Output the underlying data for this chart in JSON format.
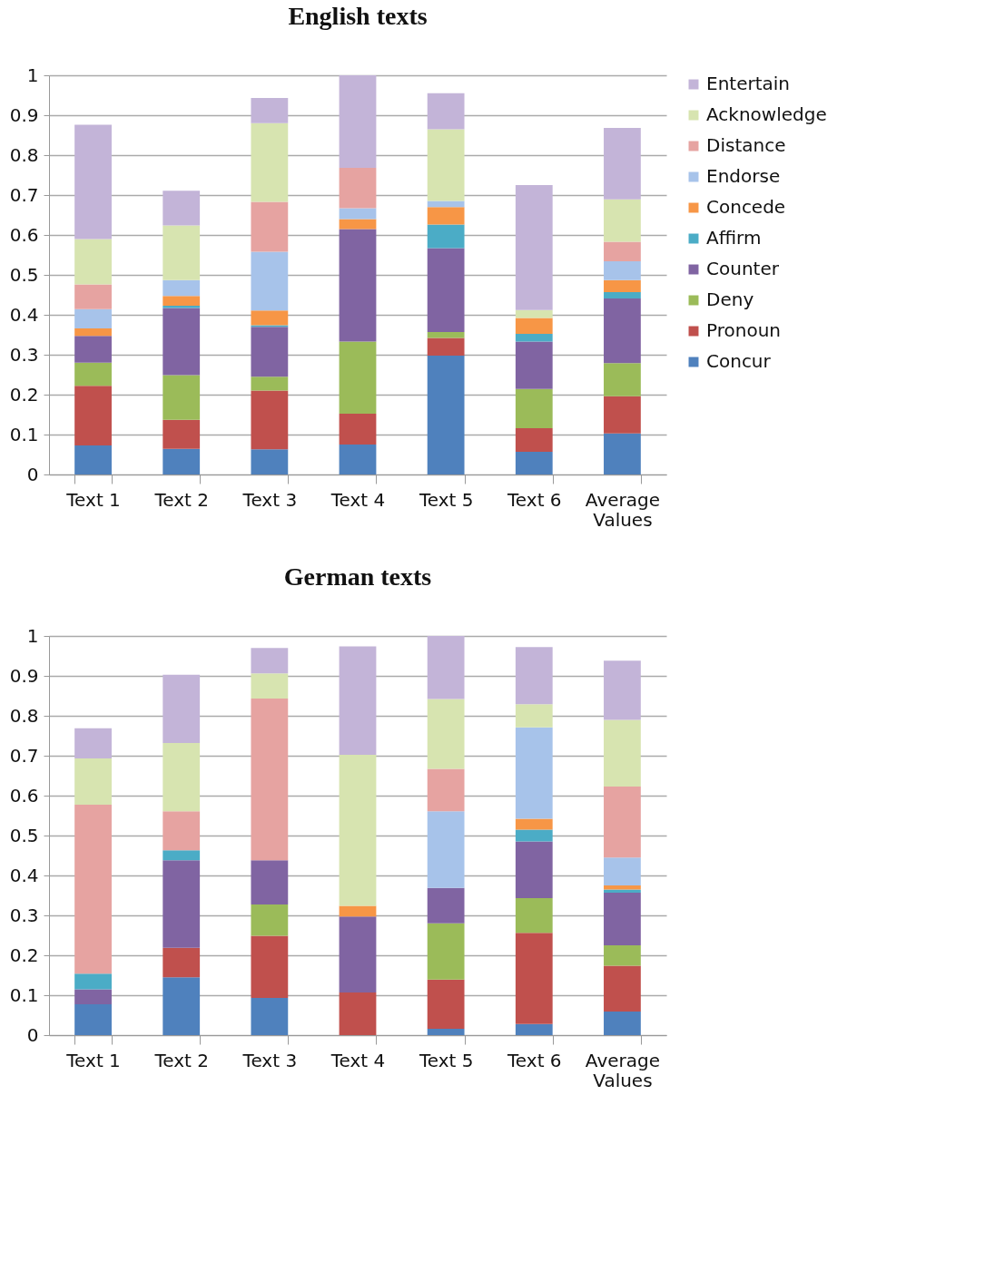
{
  "chart_data": [
    {
      "type": "bar",
      "title": "English texts",
      "stacked": true,
      "categories": [
        "Text 1",
        "Text 2",
        "Text 3",
        "Text 4",
        "Text 5",
        "Text 6",
        "Average Values"
      ],
      "ylim": [
        0,
        1
      ],
      "yticks": [
        0,
        0.1,
        0.2,
        0.3,
        0.4,
        0.5,
        0.6,
        0.7,
        0.8,
        0.9,
        1
      ],
      "grid": "y",
      "legend": "right",
      "series": [
        {
          "name": "Concur",
          "color": "#4f81bd",
          "values": [
            0.073,
            0.064,
            0.063,
            0.075,
            0.298,
            0.057,
            0.103
          ]
        },
        {
          "name": "Pronoun",
          "color": "#c0504d",
          "values": [
            0.149,
            0.073,
            0.147,
            0.077,
            0.044,
            0.059,
            0.093
          ]
        },
        {
          "name": "Deny",
          "color": "#9bbb59",
          "values": [
            0.058,
            0.112,
            0.035,
            0.181,
            0.015,
            0.098,
            0.083
          ]
        },
        {
          "name": "Counter",
          "color": "#8064a2",
          "values": [
            0.067,
            0.168,
            0.125,
            0.282,
            0.21,
            0.119,
            0.162
          ]
        },
        {
          "name": "Affirm",
          "color": "#4bacc6",
          "values": [
            0,
            0.006,
            0.004,
            0,
            0.059,
            0.019,
            0.016
          ]
        },
        {
          "name": "Concede",
          "color": "#f79646",
          "values": [
            0.019,
            0.024,
            0.037,
            0.025,
            0.044,
            0.04,
            0.03
          ]
        },
        {
          "name": "Endorse",
          "color": "#a7c3ea",
          "values": [
            0.048,
            0.04,
            0.147,
            0.027,
            0.015,
            0,
            0.047
          ]
        },
        {
          "name": "Distance",
          "color": "#e6a3a1",
          "values": [
            0.062,
            0,
            0.125,
            0.101,
            0,
            0,
            0.049
          ]
        },
        {
          "name": "Acknowledge",
          "color": "#d7e4b0",
          "values": [
            0.114,
            0.137,
            0.197,
            0,
            0.18,
            0.02,
            0.106
          ]
        },
        {
          "name": "Entertain",
          "color": "#c3b4d8",
          "values": [
            0.286,
            0.087,
            0.063,
            0.232,
            0.09,
            0.313,
            0.179
          ]
        }
      ]
    },
    {
      "type": "bar",
      "title": "German texts",
      "stacked": true,
      "categories": [
        "Text 1",
        "Text 2",
        "Text 3",
        "Text 4",
        "Text 5",
        "Text 6",
        "Average Values"
      ],
      "ylim": [
        0,
        1
      ],
      "yticks": [
        0,
        0.1,
        0.2,
        0.3,
        0.4,
        0.5,
        0.6,
        0.7,
        0.8,
        0.9,
        1
      ],
      "grid": "y",
      "legend": "right",
      "series": [
        {
          "name": "Concur",
          "color": "#4f81bd",
          "values": [
            0.077,
            0.145,
            0.093,
            0,
            0.016,
            0.028,
            0.059
          ]
        },
        {
          "name": "Pronoun",
          "color": "#c0504d",
          "values": [
            0,
            0.074,
            0.156,
            0.107,
            0.123,
            0.228,
            0.115
          ]
        },
        {
          "name": "Deny",
          "color": "#9bbb59",
          "values": [
            0,
            0,
            0.078,
            0,
            0.141,
            0.087,
            0.051
          ]
        },
        {
          "name": "Counter",
          "color": "#8064a2",
          "values": [
            0.038,
            0.219,
            0.111,
            0.19,
            0.089,
            0.142,
            0.132
          ]
        },
        {
          "name": "Affirm",
          "color": "#4bacc6",
          "values": [
            0.039,
            0.025,
            0,
            0,
            0,
            0.03,
            0.008
          ]
        },
        {
          "name": "Concede",
          "color": "#f79646",
          "values": [
            0,
            0,
            0,
            0.027,
            0,
            0.027,
            0.01
          ]
        },
        {
          "name": "Endorse",
          "color": "#a7c3ea",
          "values": [
            0,
            0,
            0,
            0,
            0.192,
            0.229,
            0.07
          ]
        },
        {
          "name": "Distance",
          "color": "#e6a3a1",
          "values": [
            0.423,
            0.098,
            0.405,
            0,
            0.106,
            0,
            0.178
          ]
        },
        {
          "name": "Acknowledge",
          "color": "#d7e4b0",
          "values": [
            0.116,
            0.171,
            0.063,
            0.378,
            0.175,
            0.058,
            0.167
          ]
        },
        {
          "name": "Entertain",
          "color": "#c3b4d8",
          "values": [
            0.076,
            0.171,
            0.064,
            0.272,
            0.158,
            0.143,
            0.148
          ]
        }
      ]
    }
  ]
}
